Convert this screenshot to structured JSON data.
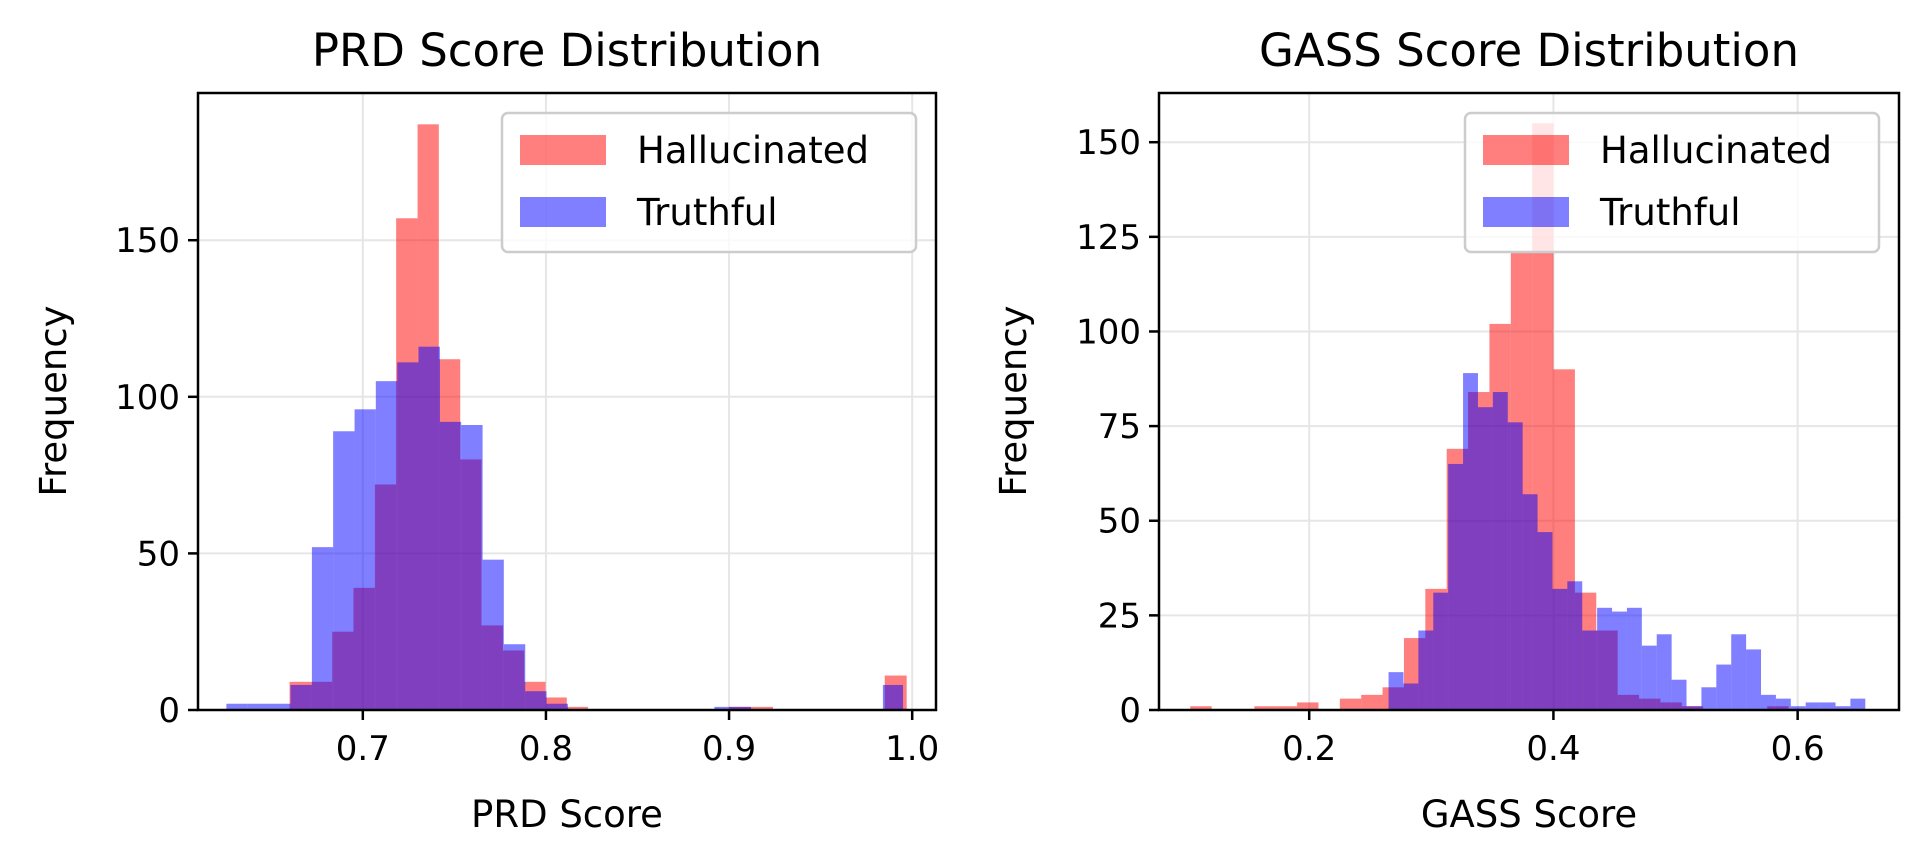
{
  "colors": {
    "hallucinated": "#ff0000",
    "truthful": "#0000ff",
    "grid": "#e6e6e6",
    "axis": "#000000",
    "legend_border": "#cccccc"
  },
  "chart_data": [
    {
      "type": "bar",
      "histogram": true,
      "title": "PRD Score Distribution",
      "xlabel": "PRD Score",
      "ylabel": "Frequency",
      "xlim": [
        0.61,
        1.013
      ],
      "ylim": [
        0,
        197
      ],
      "xticks": [
        0.7,
        0.8,
        0.9,
        1.0
      ],
      "xtick_labels": [
        "0.7",
        "0.8",
        "0.9",
        "1.0"
      ],
      "yticks": [
        0,
        50,
        100,
        150
      ],
      "ytick_labels": [
        "0",
        "50",
        "100",
        "150"
      ],
      "grid": true,
      "legend": {
        "location": "upper right",
        "entries": [
          "Hallucinated",
          "Truthful"
        ]
      },
      "series": [
        {
          "name": "Hallucinated",
          "alpha": 0.5,
          "bins": [
            [
              0.66,
              0.6716,
              9
            ],
            [
              0.6716,
              0.6833,
              9
            ],
            [
              0.6833,
              0.6949,
              25
            ],
            [
              0.6949,
              0.7066,
              39
            ],
            [
              0.7066,
              0.7182,
              72
            ],
            [
              0.7182,
              0.7299,
              157
            ],
            [
              0.7299,
              0.7415,
              187
            ],
            [
              0.7415,
              0.7532,
              112
            ],
            [
              0.7532,
              0.7648,
              80
            ],
            [
              0.7648,
              0.7765,
              27
            ],
            [
              0.7765,
              0.7881,
              19
            ],
            [
              0.7881,
              0.7998,
              9
            ],
            [
              0.7998,
              0.8114,
              4
            ],
            [
              0.8114,
              0.823,
              1
            ],
            [
              0.9,
              0.912,
              1
            ],
            [
              0.912,
              0.924,
              1
            ],
            [
              0.985,
              0.997,
              11
            ]
          ]
        },
        {
          "name": "Truthful",
          "alpha": 0.5,
          "bins": [
            [
              0.6255,
              0.6372,
              2
            ],
            [
              0.6372,
              0.6488,
              2
            ],
            [
              0.6488,
              0.6605,
              2
            ],
            [
              0.6605,
              0.6722,
              8
            ],
            [
              0.6722,
              0.6838,
              52
            ],
            [
              0.6838,
              0.6955,
              89
            ],
            [
              0.6955,
              0.7071,
              96
            ],
            [
              0.7071,
              0.7188,
              105
            ],
            [
              0.7188,
              0.7304,
              111
            ],
            [
              0.7304,
              0.7421,
              116
            ],
            [
              0.7421,
              0.7537,
              92
            ],
            [
              0.7537,
              0.7654,
              91
            ],
            [
              0.7654,
              0.777,
              48
            ],
            [
              0.777,
              0.7887,
              21
            ],
            [
              0.7887,
              0.8003,
              6
            ],
            [
              0.8003,
              0.812,
              2
            ],
            [
              0.892,
              0.912,
              1
            ],
            [
              0.984,
              0.995,
              8
            ]
          ]
        }
      ]
    },
    {
      "type": "bar",
      "histogram": true,
      "title": "GASS Score Distribution",
      "xlabel": "GASS Score",
      "ylabel": "Frequency",
      "xlim": [
        0.077,
        0.683
      ],
      "ylim": [
        0,
        163
      ],
      "xticks": [
        0.2,
        0.4,
        0.6
      ],
      "xtick_labels": [
        "0.2",
        "0.4",
        "0.6"
      ],
      "yticks": [
        0,
        25,
        50,
        75,
        100,
        125,
        150
      ],
      "ytick_labels": [
        "0",
        "25",
        "50",
        "75",
        "100",
        "125",
        "150"
      ],
      "grid": true,
      "legend": {
        "location": "upper right",
        "entries": [
          "Hallucinated",
          "Truthful"
        ]
      },
      "series": [
        {
          "name": "Hallucinated",
          "alpha": 0.5,
          "bins": [
            [
              0.1026,
              0.1201,
              1
            ],
            [
              0.1551,
              0.1726,
              1
            ],
            [
              0.1726,
              0.1901,
              1
            ],
            [
              0.1901,
              0.2076,
              2
            ],
            [
              0.2251,
              0.2426,
              3
            ],
            [
              0.2426,
              0.2601,
              4
            ],
            [
              0.2601,
              0.2776,
              6
            ],
            [
              0.2776,
              0.2951,
              19
            ],
            [
              0.2951,
              0.3126,
              32
            ],
            [
              0.3126,
              0.3301,
              69
            ],
            [
              0.3301,
              0.3476,
              84
            ],
            [
              0.3476,
              0.3651,
              102
            ],
            [
              0.3651,
              0.3826,
              121
            ],
            [
              0.3826,
              0.4001,
              155
            ],
            [
              0.4001,
              0.4176,
              90
            ],
            [
              0.4176,
              0.4351,
              31
            ],
            [
              0.4351,
              0.4526,
              21
            ],
            [
              0.4526,
              0.4701,
              4
            ],
            [
              0.4701,
              0.4876,
              3
            ],
            [
              0.4876,
              0.5051,
              2
            ],
            [
              0.5051,
              0.5226,
              1
            ],
            [
              0.5751,
              0.5926,
              1
            ]
          ]
        },
        {
          "name": "Truthful",
          "alpha": 0.5,
          "bins": [
            [
              0.265,
              0.2772,
              10
            ],
            [
              0.2772,
              0.2894,
              7
            ],
            [
              0.2894,
              0.3016,
              21
            ],
            [
              0.3016,
              0.3138,
              31
            ],
            [
              0.3138,
              0.326,
              65
            ],
            [
              0.326,
              0.3382,
              89
            ],
            [
              0.3382,
              0.3504,
              80
            ],
            [
              0.3504,
              0.3626,
              84
            ],
            [
              0.3626,
              0.3748,
              76
            ],
            [
              0.3748,
              0.387,
              57
            ],
            [
              0.387,
              0.3992,
              47
            ],
            [
              0.3992,
              0.4114,
              32
            ],
            [
              0.4114,
              0.4236,
              34
            ],
            [
              0.4236,
              0.4358,
              21
            ],
            [
              0.4358,
              0.448,
              27
            ],
            [
              0.448,
              0.4602,
              26
            ],
            [
              0.4602,
              0.4724,
              27
            ],
            [
              0.4724,
              0.4846,
              17
            ],
            [
              0.4846,
              0.4968,
              20
            ],
            [
              0.4968,
              0.509,
              8
            ],
            [
              0.509,
              0.5212,
              1
            ],
            [
              0.5212,
              0.5334,
              6
            ],
            [
              0.5334,
              0.5456,
              12
            ],
            [
              0.5456,
              0.5578,
              20
            ],
            [
              0.5578,
              0.57,
              16
            ],
            [
              0.57,
              0.5822,
              4
            ],
            [
              0.5822,
              0.5944,
              3
            ],
            [
              0.5944,
              0.6066,
              1
            ],
            [
              0.6066,
              0.6188,
              2
            ],
            [
              0.6188,
              0.631,
              2
            ],
            [
              0.631,
              0.6432,
              1
            ],
            [
              0.6432,
              0.6554,
              3
            ]
          ]
        }
      ]
    }
  ]
}
